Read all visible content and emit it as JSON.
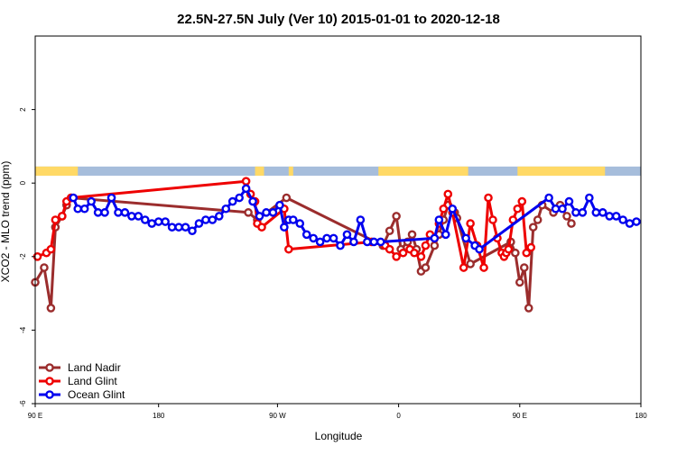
{
  "chart_data": {
    "type": "line",
    "title": "22.5N-27.5N July (Ver 10)   2015-01-01 to 2020-12-18",
    "xlabel": "Longitude",
    "ylabel": "XCO2 - MLO trend (ppm)",
    "xlim": [
      -90,
      180
    ],
    "ylim": [
      -6,
      4
    ],
    "x_ticks": [
      {
        "value": -90,
        "label": "90 E"
      },
      {
        "value": -35,
        "label": "180"
      },
      {
        "value": 18,
        "label": "90 W"
      },
      {
        "value": 72,
        "label": "0"
      },
      {
        "value": 126,
        "label": "90 E"
      },
      {
        "value": 180,
        "label": "180"
      }
    ],
    "y_ticks": [
      {
        "value": -6,
        "label": "-6"
      },
      {
        "value": -4,
        "label": "-4"
      },
      {
        "value": -2,
        "label": "-2"
      },
      {
        "value": 0,
        "label": "0"
      },
      {
        "value": 2,
        "label": "2"
      }
    ],
    "grid": false,
    "legend_position": "bottom-left",
    "land_mask": {
      "y_range": [
        0.2,
        0.45
      ],
      "ocean_color": "#a6bddb",
      "land_color": "#ffd966",
      "land_segments": [
        [
          -90,
          -71
        ],
        [
          8,
          12
        ],
        [
          23,
          25
        ],
        [
          63,
          103
        ],
        [
          125,
          164
        ]
      ]
    },
    "series": [
      {
        "name": "Land Nadir",
        "color": "#9b2d2d",
        "x": [
          -90,
          -86,
          -83,
          -81,
          -78,
          -76,
          -74,
          5,
          9,
          22,
          65,
          68,
          71,
          73,
          76,
          78,
          80,
          82,
          84,
          88,
          90,
          92,
          94,
          97,
          98,
          104,
          122,
          124,
          126,
          128,
          130,
          132,
          134,
          136,
          141,
          144,
          147,
          149
        ],
        "y": [
          -2.7,
          -2.3,
          -3.4,
          -1.2,
          -0.9,
          -0.6,
          -0.4,
          -0.8,
          -1.0,
          -0.4,
          -1.7,
          -1.3,
          -0.9,
          -1.8,
          -1.6,
          -1.4,
          -1.8,
          -2.4,
          -2.3,
          -1.7,
          -1.4,
          -1.0,
          -0.6,
          -0.8,
          -0.95,
          -2.2,
          -1.6,
          -1.9,
          -2.7,
          -2.3,
          -3.4,
          -1.2,
          -1.0,
          -0.6,
          -0.8,
          -0.6,
          -0.9,
          -1.1
        ]
      },
      {
        "name": "Land Glint",
        "color": "#ee0000",
        "x": [
          -89,
          -85,
          -83,
          -81,
          -78,
          -76,
          -74,
          4,
          6,
          8,
          9,
          11,
          21,
          23,
          60,
          66,
          68,
          71,
          74,
          77,
          79,
          82,
          84,
          86,
          88,
          90,
          92,
          94,
          96,
          101,
          104,
          107,
          110,
          112,
          114,
          116,
          118,
          119,
          120,
          121,
          123,
          125,
          127,
          129,
          131
        ],
        "y": [
          -2.0,
          -1.9,
          -1.8,
          -1.0,
          -0.9,
          -0.5,
          -0.4,
          0.05,
          -0.3,
          -0.5,
          -1.1,
          -1.2,
          -0.7,
          -1.8,
          -1.6,
          -1.7,
          -1.8,
          -2.0,
          -1.9,
          -1.8,
          -1.9,
          -2.0,
          -1.7,
          -1.4,
          -1.5,
          -1.1,
          -0.7,
          -0.3,
          -0.8,
          -2.3,
          -1.1,
          -1.7,
          -2.3,
          -0.4,
          -1.0,
          -1.5,
          -1.9,
          -2.0,
          -1.9,
          -1.8,
          -1.0,
          -0.7,
          -0.5,
          -1.9,
          -1.75
        ]
      },
      {
        "name": "Ocean Glint",
        "color": "#0000ee",
        "x": [
          -73,
          -71,
          -68,
          -65,
          -62,
          -59,
          -56,
          -53,
          -50,
          -47,
          -44,
          -41,
          -38,
          -35,
          -32,
          -29,
          -26,
          -23,
          -20,
          -17,
          -14,
          -11,
          -8,
          -5,
          -2,
          1,
          4,
          7,
          10,
          13,
          16,
          19,
          21,
          23,
          25,
          28,
          31,
          34,
          37,
          40,
          43,
          46,
          49,
          52,
          55,
          58,
          61,
          64,
          88,
          90,
          93,
          96,
          102,
          106,
          108,
          139,
          142,
          145,
          148,
          151,
          154,
          157,
          160,
          163,
          166,
          169,
          172,
          175,
          178
        ],
        "y": [
          -0.4,
          -0.7,
          -0.7,
          -0.5,
          -0.8,
          -0.8,
          -0.4,
          -0.8,
          -0.8,
          -0.9,
          -0.9,
          -1.0,
          -1.1,
          -1.05,
          -1.05,
          -1.2,
          -1.2,
          -1.2,
          -1.3,
          -1.1,
          -1.0,
          -1.0,
          -0.9,
          -0.7,
          -0.5,
          -0.4,
          -0.15,
          -0.5,
          -0.9,
          -0.8,
          -0.8,
          -0.6,
          -1.2,
          -1.0,
          -1.0,
          -1.1,
          -1.4,
          -1.5,
          -1.6,
          -1.5,
          -1.5,
          -1.7,
          -1.4,
          -1.6,
          -1.0,
          -1.6,
          -1.6,
          -1.6,
          -1.5,
          -1.0,
          -1.4,
          -0.7,
          -1.5,
          -1.7,
          -1.8,
          -0.4,
          -0.7,
          -0.7,
          -0.5,
          -0.8,
          -0.8,
          -0.4,
          -0.8,
          -0.8,
          -0.9,
          -0.9,
          -1.0,
          -1.1,
          -1.05
        ]
      }
    ]
  }
}
